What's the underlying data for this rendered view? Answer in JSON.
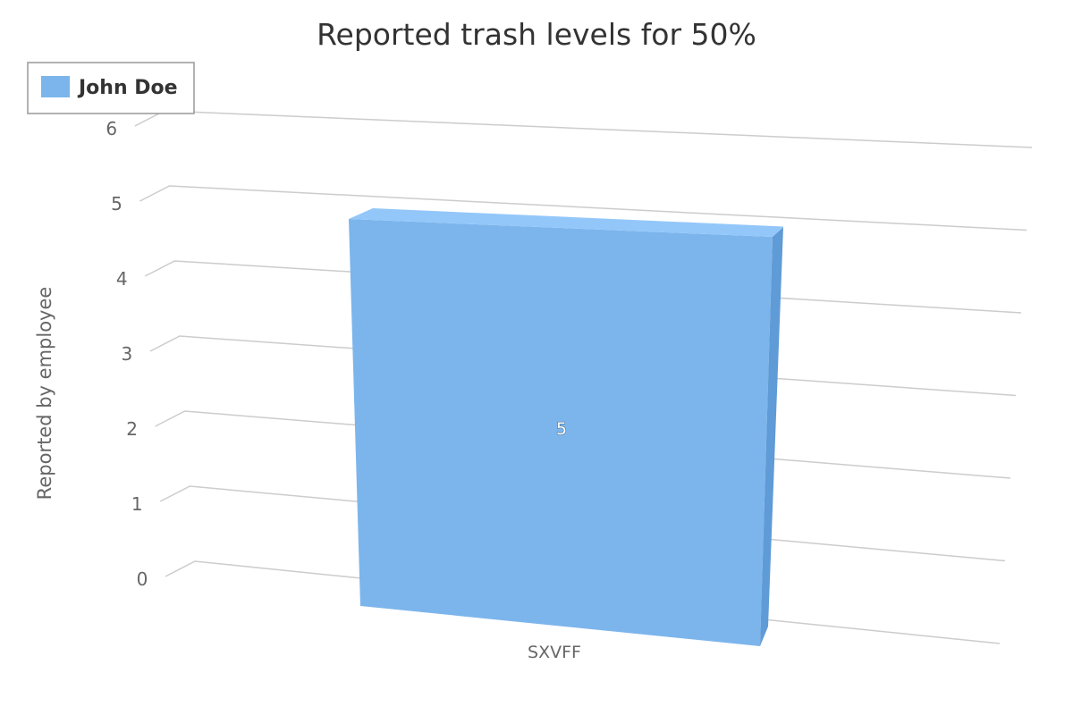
{
  "chart_data": {
    "type": "bar",
    "title": "Reported trash levels for 50%",
    "ylabel": "Reported by employee",
    "xlabel": "",
    "categories": [
      "SXVFF"
    ],
    "series": [
      {
        "name": "John Doe",
        "values": [
          5
        ],
        "color": "#7cb5ec"
      }
    ],
    "ylim": [
      0,
      6
    ],
    "yticks": [
      "0",
      "1",
      "2",
      "3",
      "4",
      "5",
      "6"
    ],
    "data_labels": [
      "5"
    ],
    "legend": "top-left",
    "grid": true,
    "three_d": true
  }
}
